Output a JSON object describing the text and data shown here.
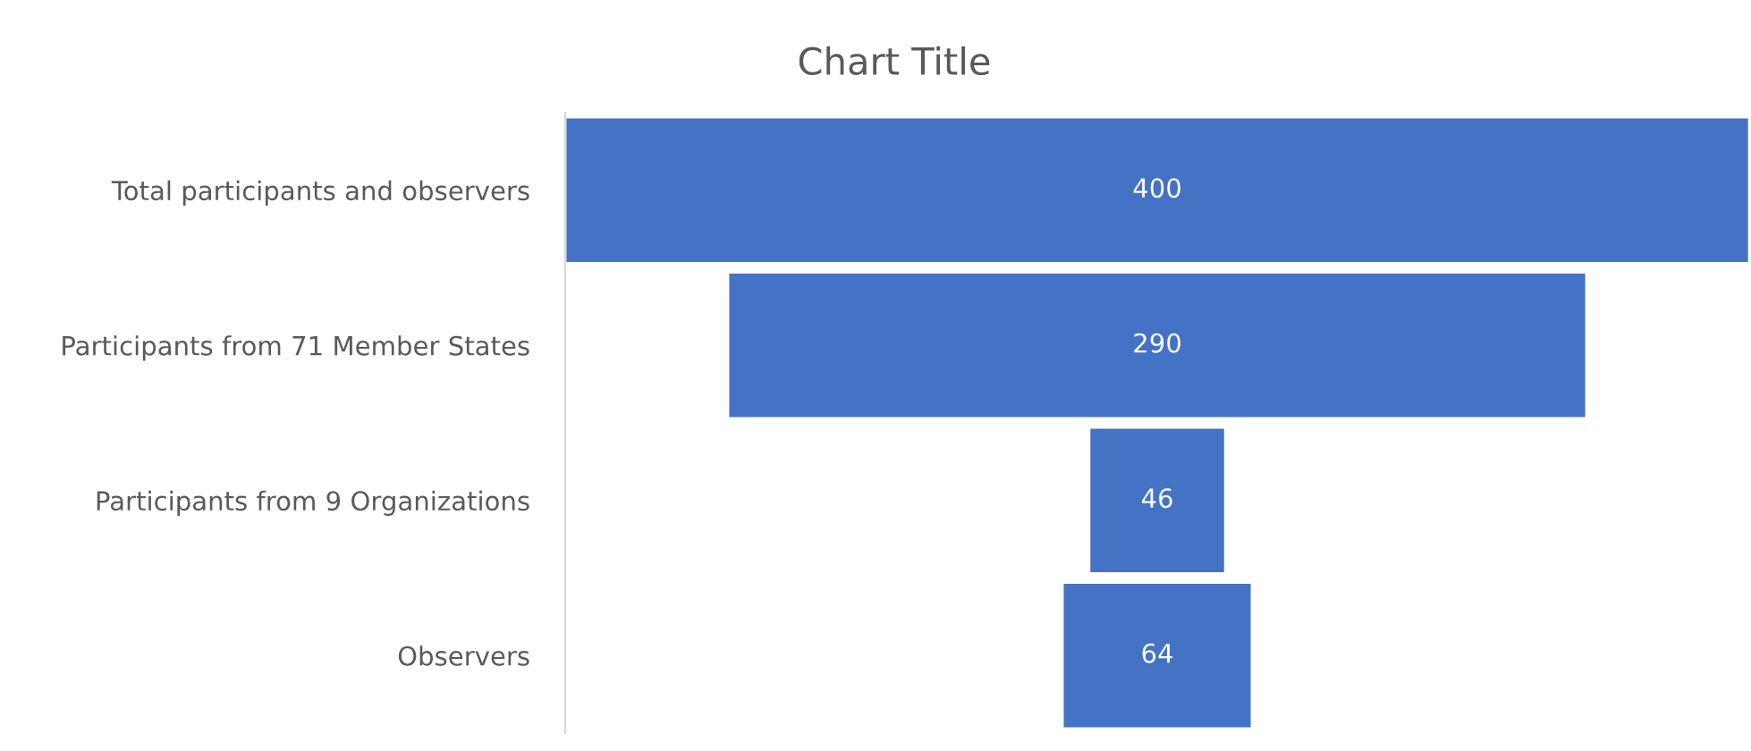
{
  "chart_data": {
    "type": "other",
    "title": "Chart Title",
    "categories": [
      "Total participants and observers",
      "Participants from 71 Member States",
      "Participants from 9 Organizations",
      "Observers"
    ],
    "values": [
      400,
      290,
      46,
      64
    ],
    "color": "#4472c4",
    "data_labels": true
  }
}
